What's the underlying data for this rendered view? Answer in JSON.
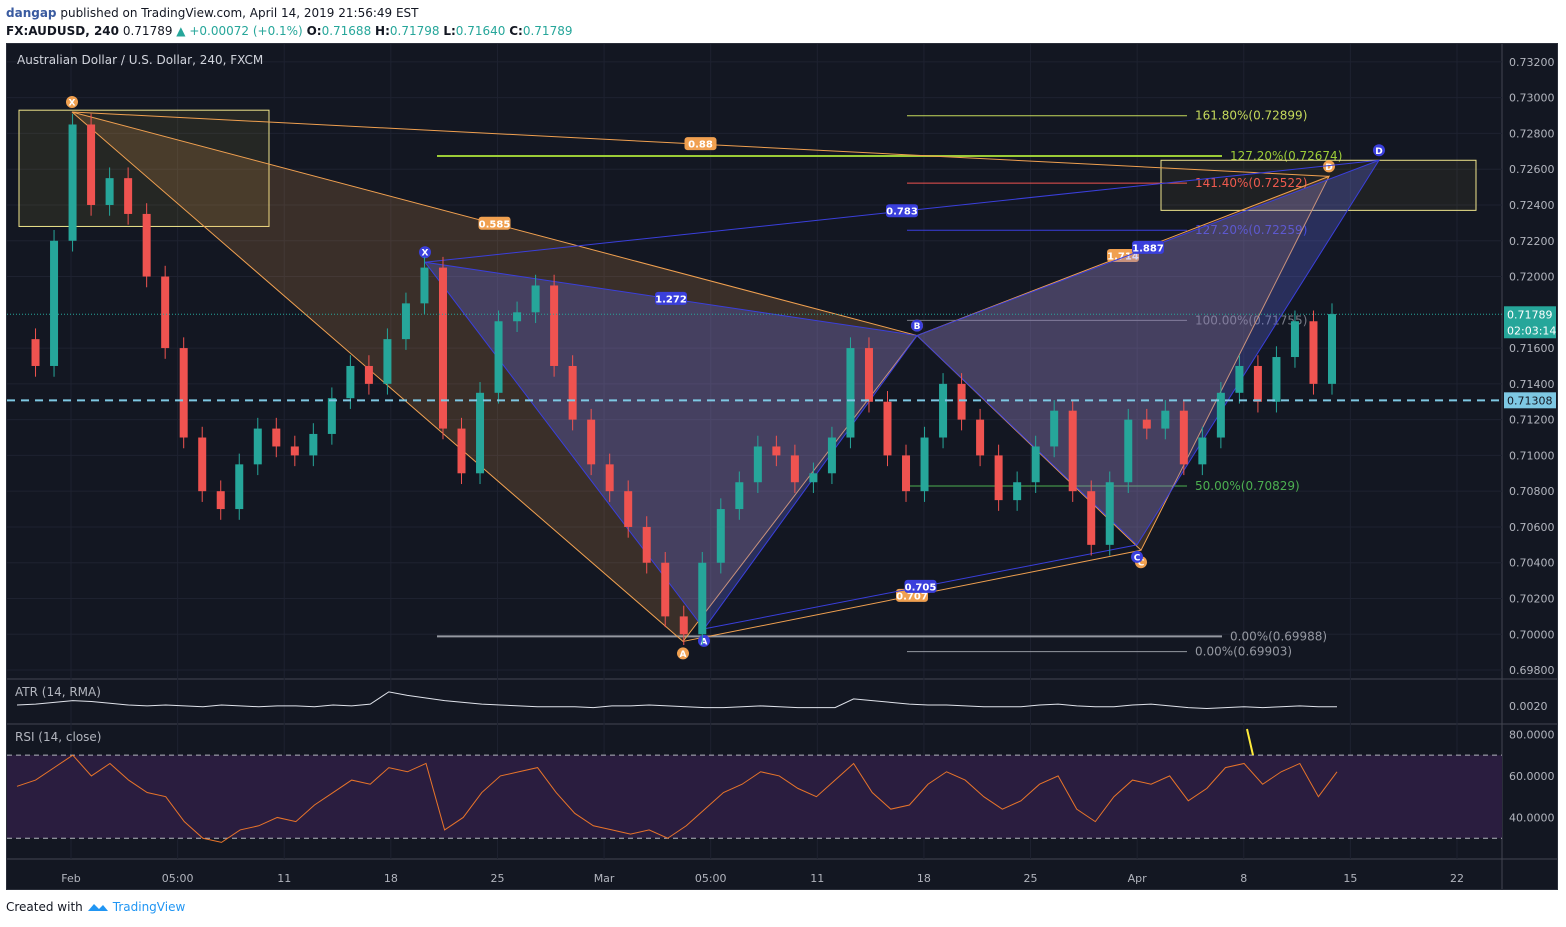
{
  "header": {
    "author": "dangap",
    "published_text": "published on TradingView.com, April 14, 2019 21:56:49 EST",
    "symbol": "FX:AUDUSD, 240",
    "last": "0.71789",
    "change": "▲ +0.00072 (+0.1%)",
    "o_label": "O:",
    "o": "0.71688",
    "h_label": "H:",
    "h": "0.71798",
    "l_label": "L:",
    "l": "0.71640",
    "c_label": "C:",
    "c": "0.71789"
  },
  "footer": {
    "created": "Created with",
    "brand": "TradingView"
  },
  "colors": {
    "bg": "#131722",
    "up": "#26a69a",
    "down": "#ef5350",
    "pattern_orange": "#f0a050",
    "pattern_blue": "#3a3fdc",
    "rsi_fill": "#2a1d3f",
    "rsi_line": "#e8742a"
  },
  "chart_data": {
    "type": "line",
    "title": "Australian Dollar / U.S. Dollar, 240, FXCM",
    "price_axis": {
      "ticks": [
        "0.73200",
        "0.73000",
        "0.72800",
        "0.72600",
        "0.72400",
        "0.72200",
        "0.72000",
        "0.71600",
        "0.71400",
        "0.71200",
        "0.71000",
        "0.70800",
        "0.70600",
        "0.70400",
        "0.70200",
        "0.70000",
        "0.69800"
      ],
      "ylim": [
        0.6975,
        0.733
      ],
      "last_price_label": "0.71789",
      "countdown_label": "02:03:14",
      "line_label": "0.71308"
    },
    "time_axis": {
      "ticks": [
        "Feb",
        "05:00",
        "11",
        "18",
        "25",
        "Mar",
        "05:00",
        "11",
        "18",
        "25",
        "Apr",
        "8",
        "15",
        "22"
      ]
    },
    "price_path": [
      [
        0,
        0.7165
      ],
      [
        1,
        0.715
      ],
      [
        2,
        0.722
      ],
      [
        3,
        0.7285
      ],
      [
        4,
        0.724
      ],
      [
        5,
        0.7255
      ],
      [
        6,
        0.7235
      ],
      [
        7,
        0.72
      ],
      [
        8,
        0.716
      ],
      [
        9,
        0.711
      ],
      [
        10,
        0.708
      ],
      [
        11,
        0.707
      ],
      [
        12,
        0.7095
      ],
      [
        13,
        0.7115
      ],
      [
        14,
        0.7105
      ],
      [
        15,
        0.71
      ],
      [
        16,
        0.7112
      ],
      [
        17,
        0.7132
      ],
      [
        18,
        0.715
      ],
      [
        19,
        0.714
      ],
      [
        20,
        0.7165
      ],
      [
        21,
        0.7185
      ],
      [
        22,
        0.7205
      ],
      [
        23,
        0.7115
      ],
      [
        24,
        0.709
      ],
      [
        25,
        0.7135
      ],
      [
        26,
        0.7175
      ],
      [
        27,
        0.718
      ],
      [
        28,
        0.7195
      ],
      [
        29,
        0.715
      ],
      [
        30,
        0.712
      ],
      [
        31,
        0.7095
      ],
      [
        32,
        0.708
      ],
      [
        33,
        0.706
      ],
      [
        34,
        0.704
      ],
      [
        35,
        0.701
      ],
      [
        36,
        0.7
      ],
      [
        37,
        0.704
      ],
      [
        38,
        0.707
      ],
      [
        39,
        0.7085
      ],
      [
        40,
        0.7105
      ],
      [
        41,
        0.71
      ],
      [
        42,
        0.7085
      ],
      [
        43,
        0.709
      ],
      [
        44,
        0.711
      ],
      [
        45,
        0.716
      ],
      [
        46,
        0.713
      ],
      [
        47,
        0.71
      ],
      [
        48,
        0.708
      ],
      [
        49,
        0.711
      ],
      [
        50,
        0.714
      ],
      [
        51,
        0.712
      ],
      [
        52,
        0.71
      ],
      [
        53,
        0.7075
      ],
      [
        54,
        0.7085
      ],
      [
        55,
        0.7105
      ],
      [
        56,
        0.7125
      ],
      [
        57,
        0.708
      ],
      [
        58,
        0.705
      ],
      [
        59,
        0.7085
      ],
      [
        60,
        0.712
      ],
      [
        61,
        0.7115
      ],
      [
        62,
        0.7125
      ],
      [
        63,
        0.7095
      ],
      [
        64,
        0.711
      ],
      [
        65,
        0.7135
      ],
      [
        66,
        0.715
      ],
      [
        67,
        0.713
      ],
      [
        68,
        0.7155
      ],
      [
        69,
        0.7175
      ],
      [
        70,
        0.714
      ],
      [
        71,
        0.7179
      ]
    ],
    "harmonic_patterns": [
      {
        "name": "orange",
        "points": {
          "X": 0.7292,
          "A": 0.6996,
          "B": 0.7167,
          "C": 0.7047,
          "D": 0.7256
        },
        "ratios": [
          "0.88",
          "0.585",
          "1.714",
          "0.707"
        ],
        "point_labels": [
          "X",
          "A",
          "B",
          "C",
          "D"
        ]
      },
      {
        "name": "blue",
        "points": {
          "X": 0.7208,
          "A": 0.7003,
          "B": 0.7167,
          "C": 0.705,
          "D": 0.7265
        },
        "ratios": [
          "0.783",
          "1.272",
          "1.887",
          "0.705"
        ],
        "point_labels": [
          "X",
          "A",
          "B",
          "C",
          "D"
        ]
      }
    ],
    "fib_levels": [
      {
        "label": "161.80%(0.72899)",
        "value": 0.72899,
        "color": "#c5d95b"
      },
      {
        "label": "127.20%(0.72674)",
        "value": 0.72674,
        "color": "#9ccc37"
      },
      {
        "label": "141.40%(0.72522)",
        "value": 0.72522,
        "color": "#ef5350"
      },
      {
        "label": "127.20%(0.72259)",
        "value": 0.72259,
        "color": "#3a3fdc"
      },
      {
        "label": "100.00%(0.71755)",
        "value": 0.71755,
        "color": "#787b86"
      },
      {
        "label": "50.00%(0.70829)",
        "value": 0.70829,
        "color": "#4caf50"
      },
      {
        "label": "0.00%(0.69988)",
        "value": 0.69988,
        "color": "#9598a1"
      },
      {
        "label": "0.00%(0.69903)",
        "value": 0.69903,
        "color": "#9598a1"
      }
    ],
    "atr": {
      "label": "ATR (14, RMA)",
      "ticks": [
        "0.0020"
      ],
      "ylim": [
        0.0005,
        0.0045
      ],
      "values": [
        0.0021,
        0.0022,
        0.0024,
        0.0026,
        0.0025,
        0.0023,
        0.0021,
        0.002,
        0.0021,
        0.002,
        0.0019,
        0.0021,
        0.002,
        0.0019,
        0.002,
        0.002,
        0.0019,
        0.0021,
        0.002,
        0.0022,
        0.0036,
        0.0032,
        0.0029,
        0.0026,
        0.0024,
        0.0022,
        0.0021,
        0.002,
        0.0019,
        0.0019,
        0.0019,
        0.0018,
        0.002,
        0.002,
        0.0021,
        0.002,
        0.0019,
        0.0018,
        0.0018,
        0.0019,
        0.002,
        0.0019,
        0.0018,
        0.0018,
        0.0018,
        0.0028,
        0.0026,
        0.0024,
        0.0022,
        0.0021,
        0.0021,
        0.002,
        0.0019,
        0.0019,
        0.0019,
        0.0021,
        0.0022,
        0.002,
        0.0019,
        0.0019,
        0.0021,
        0.0022,
        0.002,
        0.0018,
        0.0017,
        0.0018,
        0.0019,
        0.0018,
        0.0019,
        0.002,
        0.0019,
        0.0019
      ]
    },
    "rsi": {
      "label": "RSI (14, close)",
      "ticks": [
        "80.0000",
        "60.0000",
        "40.0000"
      ],
      "ylim": [
        20,
        85
      ],
      "bands": [
        30,
        70
      ],
      "values": [
        55,
        58,
        64,
        70,
        60,
        66,
        58,
        52,
        50,
        38,
        30,
        28,
        34,
        36,
        40,
        38,
        46,
        52,
        58,
        56,
        64,
        62,
        66,
        34,
        40,
        52,
        60,
        62,
        64,
        52,
        42,
        36,
        34,
        32,
        34,
        30,
        36,
        44,
        52,
        56,
        62,
        60,
        54,
        50,
        58,
        66,
        52,
        44,
        46,
        56,
        62,
        58,
        50,
        44,
        48,
        56,
        60,
        44,
        38,
        50,
        58,
        56,
        60,
        48,
        54,
        64,
        66,
        56,
        62,
        66,
        50,
        62
      ]
    }
  }
}
